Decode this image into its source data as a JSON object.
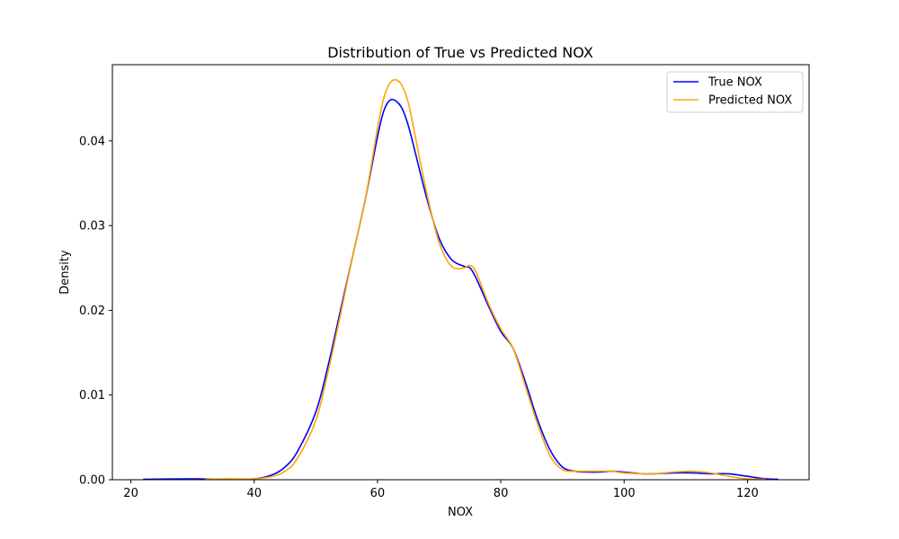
{
  "chart_data": {
    "type": "line",
    "title": "Distribution of True vs Predicted NOX",
    "xlabel": "NOX",
    "ylabel": "Density",
    "xlim": [
      17,
      130
    ],
    "ylim": [
      0,
      0.049
    ],
    "x_ticks": [
      20,
      40,
      60,
      80,
      100,
      120
    ],
    "y_ticks": [
      0.0,
      0.01,
      0.02,
      0.03,
      0.04
    ],
    "x_tick_labels": [
      "20",
      "40",
      "60",
      "80",
      "100",
      "120"
    ],
    "y_tick_labels": [
      "0.00",
      "0.01",
      "0.02",
      "0.03",
      "0.04"
    ],
    "grid": false,
    "legend_position": "top-right",
    "series": [
      {
        "name": "True NOX",
        "color": "#0000ff",
        "x": [
          22,
          30,
          35,
          40,
          43,
          45,
          47,
          50,
          52,
          54,
          56,
          58,
          60,
          61,
          62,
          63,
          64,
          65,
          66,
          68,
          70,
          72,
          74,
          75,
          76,
          78,
          80,
          82,
          84,
          86,
          88,
          90,
          92,
          94,
          96,
          98,
          100,
          103,
          105,
          108,
          111,
          114,
          117,
          120,
          123,
          125
        ],
        "y": [
          0.0,
          0.0001,
          0.0,
          0.0001,
          0.0006,
          0.0015,
          0.0033,
          0.008,
          0.0135,
          0.02,
          0.0265,
          0.033,
          0.0405,
          0.0435,
          0.0448,
          0.0447,
          0.0438,
          0.0418,
          0.039,
          0.0332,
          0.0285,
          0.026,
          0.0252,
          0.025,
          0.0238,
          0.0205,
          0.0175,
          0.0155,
          0.0115,
          0.007,
          0.0035,
          0.0015,
          0.001,
          0.0009,
          0.0009,
          0.001,
          0.0009,
          0.0007,
          0.0007,
          0.0008,
          0.0008,
          0.0007,
          0.0007,
          0.0004,
          0.0001,
          0.0
        ]
      },
      {
        "name": "Predicted NOX",
        "color": "#ffa500",
        "x": [
          32,
          36,
          40,
          43,
          45,
          47,
          50,
          52,
          54,
          56,
          58,
          60,
          61,
          62,
          63,
          64,
          65,
          66,
          68,
          70,
          72,
          74,
          75,
          76,
          78,
          80,
          82,
          84,
          86,
          88,
          90,
          92,
          94,
          96,
          98,
          100,
          103,
          105,
          108,
          111,
          114,
          117,
          120,
          123
        ],
        "y": [
          0.0,
          0.0001,
          0.0001,
          0.0004,
          0.001,
          0.0025,
          0.007,
          0.0128,
          0.0195,
          0.0265,
          0.033,
          0.0415,
          0.045,
          0.0468,
          0.0472,
          0.0465,
          0.0445,
          0.041,
          0.0338,
          0.028,
          0.0252,
          0.025,
          0.0253,
          0.0245,
          0.0208,
          0.0178,
          0.0155,
          0.011,
          0.0065,
          0.0028,
          0.0012,
          0.001,
          0.001,
          0.001,
          0.001,
          0.0008,
          0.0007,
          0.0007,
          0.0009,
          0.001,
          0.0008,
          0.0004,
          0.0001,
          0.0
        ]
      }
    ]
  }
}
